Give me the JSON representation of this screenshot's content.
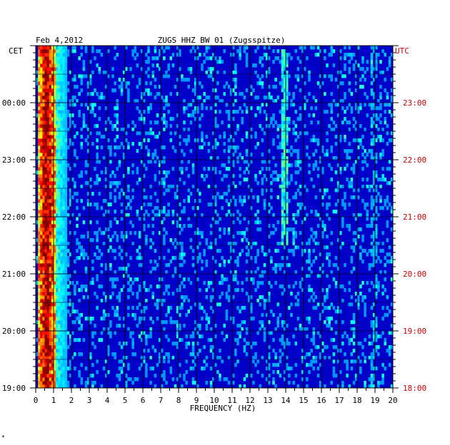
{
  "header": {
    "date": "Feb 4,2012",
    "station": "ZUGS HHZ BW 01 (Zugsspitze)"
  },
  "labels": {
    "left_timezone": "CET",
    "right_timezone": "UTC",
    "footnote_mark": "*"
  },
  "colors": {
    "background_blue": "#0000c8",
    "utc_text": "#cc0000",
    "grid": "#000000"
  },
  "chart_data": {
    "type": "heatmap",
    "title": "ZUGS HHZ BW 01 (Zugsspitze)",
    "xlabel": "FREQUENCY (HZ)",
    "ylabel_left": "CET",
    "ylabel_right": "UTC",
    "xlim": [
      0,
      20
    ],
    "x_ticks": [
      "0",
      "1",
      "2",
      "3",
      "4",
      "5",
      "6",
      "7",
      "8",
      "9",
      "10",
      "11",
      "12",
      "13",
      "14",
      "15",
      "16",
      "17",
      "18",
      "19",
      "20"
    ],
    "y_ticks_left": [
      "19:00",
      "20:00",
      "21:00",
      "22:00",
      "23:00",
      "00:00"
    ],
    "y_ticks_right": [
      "18:00",
      "19:00",
      "20:00",
      "21:00",
      "22:00",
      "23:00"
    ],
    "y_hours_utc": [
      18,
      19,
      20,
      21,
      22,
      23
    ],
    "time_range_utc_hours": [
      18,
      24
    ],
    "colormap": "jet",
    "features": [
      {
        "kind": "band",
        "freq_hz": [
          0.1,
          1.0
        ],
        "intensity": "high"
      },
      {
        "kind": "line",
        "freq_hz": 13.9,
        "time_utc_hours": [
          20.5,
          23.9
        ],
        "intensity": "medium"
      },
      {
        "kind": "line",
        "freq_hz": 18.9,
        "time_utc_hours": [
          18.0,
          24.0
        ],
        "intensity": "low"
      }
    ]
  }
}
